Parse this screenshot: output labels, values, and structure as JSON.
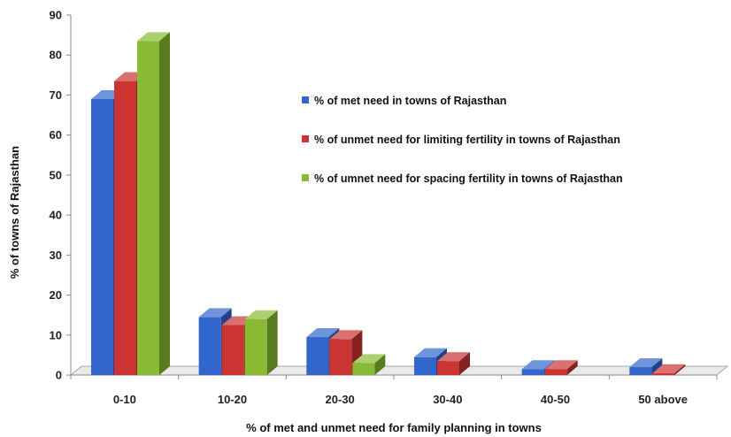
{
  "chart_data": {
    "type": "bar",
    "title": "",
    "xlabel": "% of met and unmet need for family planning in towns",
    "ylabel": "% of towns of Rajasthan",
    "ylim": [
      0,
      90
    ],
    "yticks": [
      0,
      10,
      20,
      30,
      40,
      50,
      60,
      70,
      80,
      90
    ],
    "categories": [
      "0-10",
      "10-20",
      "20-30",
      "30-40",
      "40-50",
      "50 above"
    ],
    "series": [
      {
        "name": "% of met need in towns of Rajasthan",
        "color": "#3366cc",
        "values": [
          69,
          14.5,
          9.5,
          4.5,
          1.5,
          2
        ]
      },
      {
        "name": "% of unmet need for limiting fertility in towns of Rajasthan",
        "color": "#cc3333",
        "values": [
          73.5,
          12.5,
          9,
          3.5,
          1.5,
          0.5
        ]
      },
      {
        "name": "% of umnet need for spacing  fertility in towns of Rajasthan",
        "color": "#88bb33",
        "values": [
          83.5,
          14,
          3,
          0,
          0,
          0
        ]
      }
    ],
    "grid": false,
    "legend": "right"
  }
}
